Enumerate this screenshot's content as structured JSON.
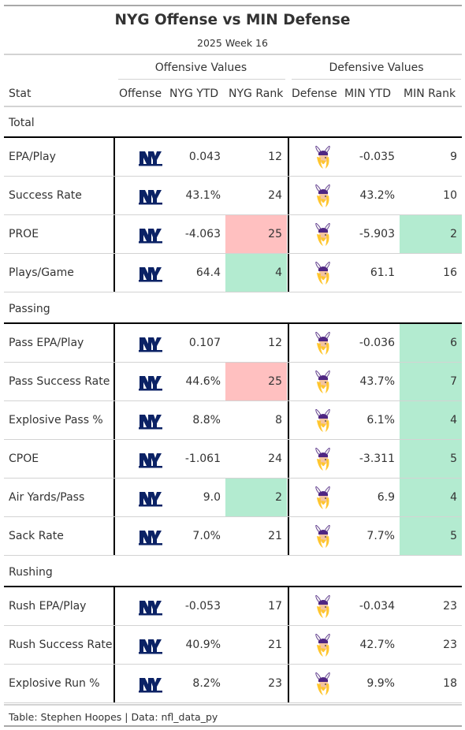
{
  "title": "NYG Offense vs MIN Defense",
  "subtitle": "2025 Week 16",
  "spanners": {
    "offense": "Offensive Values",
    "defense": "Defensive Values"
  },
  "columns": [
    "Stat",
    "Offense",
    "NYG YTD",
    "NYG Rank",
    "Defense",
    "MIN YTD",
    "MIN Rank"
  ],
  "logos": {
    "offense": "nyg-logo-icon",
    "defense": "min-vikings-logo-icon"
  },
  "colors": {
    "highlight_bad": "#ffc0c0",
    "highlight_good": "#b3ebd0",
    "nyg_blue": "#0b2265"
  },
  "groups": [
    {
      "name": "Total",
      "rows": [
        {
          "stat": "EPA/Play",
          "nyg_ytd": "0.043",
          "nyg_rank": "12",
          "min_ytd": "-0.035",
          "min_rank": "9",
          "nyg_hl": "",
          "min_hl": ""
        },
        {
          "stat": "Success Rate",
          "nyg_ytd": "43.1%",
          "nyg_rank": "24",
          "min_ytd": "43.2%",
          "min_rank": "10",
          "nyg_hl": "",
          "min_hl": ""
        },
        {
          "stat": "PROE",
          "nyg_ytd": "-4.063",
          "nyg_rank": "25",
          "min_ytd": "-5.903",
          "min_rank": "2",
          "nyg_hl": "red",
          "min_hl": "green"
        },
        {
          "stat": "Plays/Game",
          "nyg_ytd": "64.4",
          "nyg_rank": "4",
          "min_ytd": "61.1",
          "min_rank": "16",
          "nyg_hl": "green",
          "min_hl": ""
        }
      ]
    },
    {
      "name": "Passing",
      "rows": [
        {
          "stat": "Pass EPA/Play",
          "nyg_ytd": "0.107",
          "nyg_rank": "12",
          "min_ytd": "-0.036",
          "min_rank": "6",
          "nyg_hl": "",
          "min_hl": "green"
        },
        {
          "stat": "Pass Success Rate",
          "nyg_ytd": "44.6%",
          "nyg_rank": "25",
          "min_ytd": "43.7%",
          "min_rank": "7",
          "nyg_hl": "red",
          "min_hl": "green"
        },
        {
          "stat": "Explosive Pass %",
          "nyg_ytd": "8.8%",
          "nyg_rank": "8",
          "min_ytd": "6.1%",
          "min_rank": "4",
          "nyg_hl": "",
          "min_hl": "green"
        },
        {
          "stat": "CPOE",
          "nyg_ytd": "-1.061",
          "nyg_rank": "24",
          "min_ytd": "-3.311",
          "min_rank": "5",
          "nyg_hl": "",
          "min_hl": "green"
        },
        {
          "stat": "Air Yards/Pass",
          "nyg_ytd": "9.0",
          "nyg_rank": "2",
          "min_ytd": "6.9",
          "min_rank": "4",
          "nyg_hl": "green",
          "min_hl": "green"
        },
        {
          "stat": "Sack Rate",
          "nyg_ytd": "7.0%",
          "nyg_rank": "21",
          "min_ytd": "7.7%",
          "min_rank": "5",
          "nyg_hl": "",
          "min_hl": "green"
        }
      ]
    },
    {
      "name": "Rushing",
      "rows": [
        {
          "stat": "Rush EPA/Play",
          "nyg_ytd": "-0.053",
          "nyg_rank": "17",
          "min_ytd": "-0.034",
          "min_rank": "23",
          "nyg_hl": "",
          "min_hl": ""
        },
        {
          "stat": "Rush Success Rate",
          "nyg_ytd": "40.9%",
          "nyg_rank": "21",
          "min_ytd": "42.7%",
          "min_rank": "23",
          "nyg_hl": "",
          "min_hl": ""
        },
        {
          "stat": "Explosive Run %",
          "nyg_ytd": "8.2%",
          "nyg_rank": "23",
          "min_ytd": "9.9%",
          "min_rank": "18",
          "nyg_hl": "",
          "min_hl": ""
        }
      ]
    }
  ],
  "footer": "Table: Stephen Hoopes | Data: nfl_data_py"
}
